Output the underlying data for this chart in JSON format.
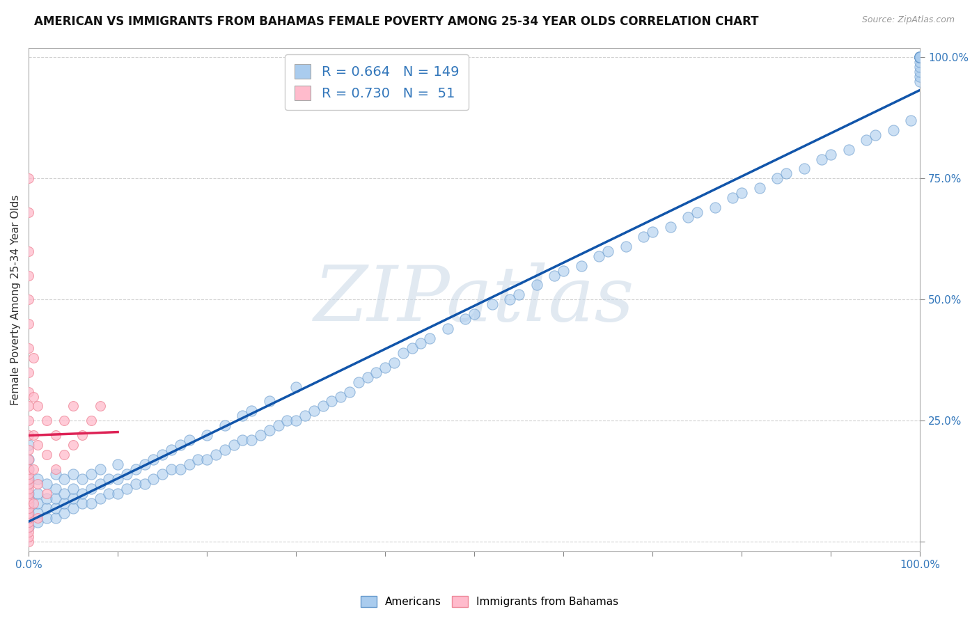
{
  "title": "AMERICAN VS IMMIGRANTS FROM BAHAMAS FEMALE POVERTY AMONG 25-34 YEAR OLDS CORRELATION CHART",
  "source": "Source: ZipAtlas.com",
  "ylabel": "Female Poverty Among 25-34 Year Olds",
  "xlim": [
    0,
    1
  ],
  "ylim": [
    -0.02,
    1.02
  ],
  "american_R": 0.664,
  "american_N": 149,
  "bahamas_R": 0.73,
  "bahamas_N": 51,
  "american_color": "#aaccee",
  "american_edge_color": "#6699cc",
  "american_line_color": "#1155aa",
  "bahamas_color": "#ffbbcc",
  "bahamas_edge_color": "#ee8899",
  "bahamas_line_color": "#dd2255",
  "watermark_text": "ZIPatlas",
  "background_color": "#ffffff",
  "grid_color": "#cccccc",
  "title_fontsize": 12,
  "axis_label_fontsize": 11,
  "tick_fontsize": 11,
  "legend_fontsize": 14,
  "tick_color": "#3377bb",
  "am_x": [
    0.0,
    0.0,
    0.0,
    0.0,
    0.0,
    0.0,
    0.0,
    0.0,
    0.0,
    0.0,
    0.0,
    0.0,
    0.01,
    0.01,
    0.01,
    0.01,
    0.01,
    0.02,
    0.02,
    0.02,
    0.02,
    0.03,
    0.03,
    0.03,
    0.03,
    0.03,
    0.04,
    0.04,
    0.04,
    0.04,
    0.05,
    0.05,
    0.05,
    0.05,
    0.06,
    0.06,
    0.06,
    0.07,
    0.07,
    0.07,
    0.08,
    0.08,
    0.08,
    0.09,
    0.09,
    0.1,
    0.1,
    0.1,
    0.11,
    0.11,
    0.12,
    0.12,
    0.13,
    0.13,
    0.14,
    0.14,
    0.15,
    0.15,
    0.16,
    0.16,
    0.17,
    0.17,
    0.18,
    0.18,
    0.19,
    0.2,
    0.2,
    0.21,
    0.22,
    0.22,
    0.23,
    0.24,
    0.24,
    0.25,
    0.25,
    0.26,
    0.27,
    0.27,
    0.28,
    0.29,
    0.3,
    0.3,
    0.31,
    0.32,
    0.33,
    0.34,
    0.35,
    0.36,
    0.37,
    0.38,
    0.39,
    0.4,
    0.41,
    0.42,
    0.43,
    0.44,
    0.45,
    0.47,
    0.49,
    0.5,
    0.52,
    0.54,
    0.55,
    0.57,
    0.59,
    0.6,
    0.62,
    0.64,
    0.65,
    0.67,
    0.69,
    0.7,
    0.72,
    0.74,
    0.75,
    0.77,
    0.79,
    0.8,
    0.82,
    0.84,
    0.85,
    0.87,
    0.89,
    0.9,
    0.92,
    0.94,
    0.95,
    0.97,
    0.99,
    1.0,
    1.0,
    1.0,
    1.0,
    1.0,
    1.0,
    1.0,
    1.0,
    1.0,
    1.0,
    1.0,
    1.0,
    1.0,
    1.0,
    1.0,
    1.0,
    1.0,
    1.0,
    1.0,
    1.0
  ],
  "am_y": [
    0.03,
    0.05,
    0.06,
    0.07,
    0.08,
    0.09,
    0.1,
    0.12,
    0.13,
    0.15,
    0.17,
    0.2,
    0.04,
    0.06,
    0.08,
    0.1,
    0.13,
    0.05,
    0.07,
    0.09,
    0.12,
    0.05,
    0.07,
    0.09,
    0.11,
    0.14,
    0.06,
    0.08,
    0.1,
    0.13,
    0.07,
    0.09,
    0.11,
    0.14,
    0.08,
    0.1,
    0.13,
    0.08,
    0.11,
    0.14,
    0.09,
    0.12,
    0.15,
    0.1,
    0.13,
    0.1,
    0.13,
    0.16,
    0.11,
    0.14,
    0.12,
    0.15,
    0.12,
    0.16,
    0.13,
    0.17,
    0.14,
    0.18,
    0.15,
    0.19,
    0.15,
    0.2,
    0.16,
    0.21,
    0.17,
    0.17,
    0.22,
    0.18,
    0.19,
    0.24,
    0.2,
    0.21,
    0.26,
    0.21,
    0.27,
    0.22,
    0.23,
    0.29,
    0.24,
    0.25,
    0.25,
    0.32,
    0.26,
    0.27,
    0.28,
    0.29,
    0.3,
    0.31,
    0.33,
    0.34,
    0.35,
    0.36,
    0.37,
    0.39,
    0.4,
    0.41,
    0.42,
    0.44,
    0.46,
    0.47,
    0.49,
    0.5,
    0.51,
    0.53,
    0.55,
    0.56,
    0.57,
    0.59,
    0.6,
    0.61,
    0.63,
    0.64,
    0.65,
    0.67,
    0.68,
    0.69,
    0.71,
    0.72,
    0.73,
    0.75,
    0.76,
    0.77,
    0.79,
    0.8,
    0.81,
    0.83,
    0.84,
    0.85,
    0.87,
    0.95,
    0.96,
    0.97,
    0.98,
    0.99,
    1.0,
    1.0,
    1.0,
    1.0,
    1.0,
    1.0,
    1.0,
    1.0,
    1.0,
    1.0,
    1.0,
    1.0,
    1.0,
    1.0,
    1.0
  ],
  "ba_x": [
    0.0,
    0.0,
    0.0,
    0.0,
    0.0,
    0.0,
    0.0,
    0.0,
    0.0,
    0.0,
    0.0,
    0.0,
    0.0,
    0.0,
    0.0,
    0.0,
    0.0,
    0.0,
    0.0,
    0.0,
    0.0,
    0.0,
    0.0,
    0.0,
    0.0,
    0.0,
    0.0,
    0.0,
    0.0,
    0.0,
    0.005,
    0.005,
    0.005,
    0.005,
    0.005,
    0.01,
    0.01,
    0.01,
    0.01,
    0.02,
    0.02,
    0.02,
    0.03,
    0.03,
    0.04,
    0.04,
    0.05,
    0.05,
    0.06,
    0.07,
    0.08
  ],
  "ba_y": [
    0.0,
    0.01,
    0.02,
    0.03,
    0.04,
    0.05,
    0.06,
    0.07,
    0.08,
    0.09,
    0.1,
    0.11,
    0.12,
    0.13,
    0.14,
    0.15,
    0.17,
    0.19,
    0.22,
    0.25,
    0.28,
    0.31,
    0.35,
    0.4,
    0.45,
    0.5,
    0.55,
    0.6,
    0.68,
    0.75,
    0.08,
    0.15,
    0.22,
    0.3,
    0.38,
    0.05,
    0.12,
    0.2,
    0.28,
    0.1,
    0.18,
    0.25,
    0.15,
    0.22,
    0.18,
    0.25,
    0.2,
    0.28,
    0.22,
    0.25,
    0.28
  ]
}
